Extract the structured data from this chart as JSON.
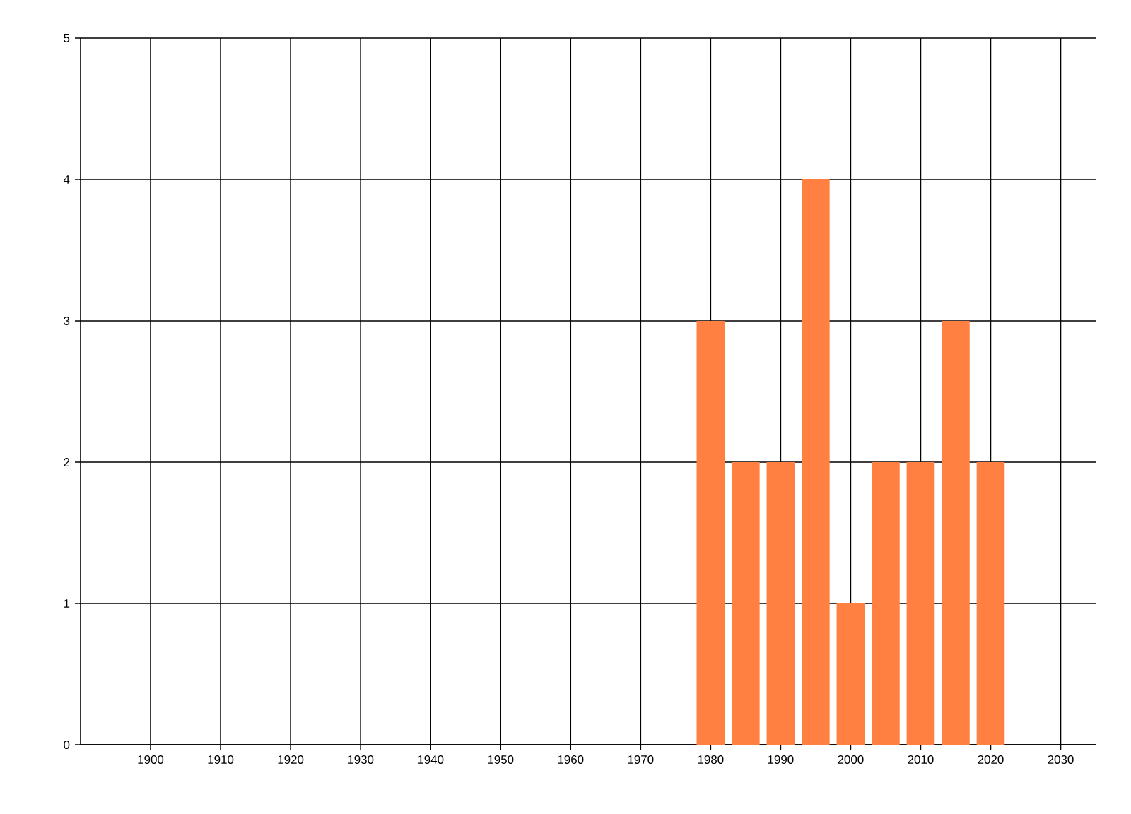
{
  "chart_data": {
    "type": "bar",
    "x": [
      1980,
      1985,
      1990,
      1995,
      2000,
      2005,
      2010,
      2015,
      2020
    ],
    "values": [
      3,
      2,
      2,
      4,
      1,
      2,
      2,
      3,
      2
    ],
    "color": "#ff8040",
    "xlim": [
      1890,
      2035
    ],
    "xticks": [
      1900,
      1910,
      1920,
      1930,
      1940,
      1950,
      1960,
      1970,
      1980,
      1990,
      2000,
      2010,
      2020,
      2030
    ],
    "ylim": [
      0,
      5
    ],
    "yticks": [
      0,
      1,
      2,
      3,
      4,
      5
    ],
    "grid": true
  }
}
